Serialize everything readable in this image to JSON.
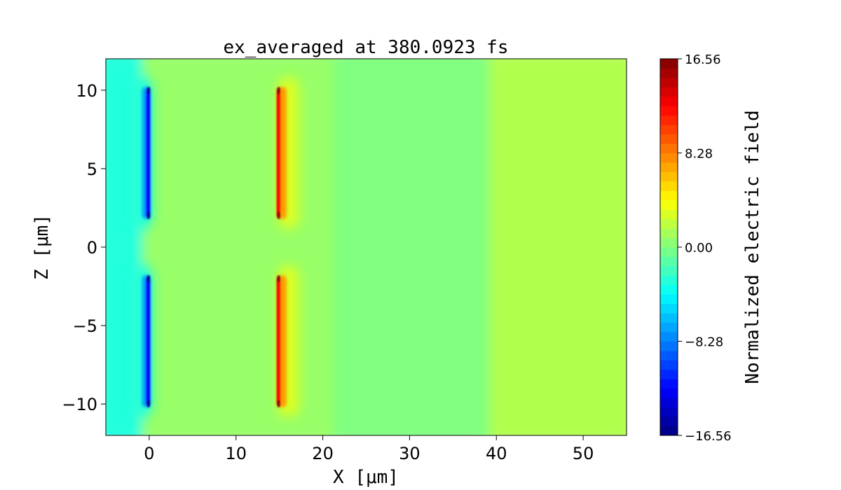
{
  "chart_data": {
    "type": "heatmap",
    "title": "ex_averaged at 380.0923 fs",
    "xlabel": "X [μm]",
    "ylabel": "Z [μm]",
    "xlim": [
      -5,
      55
    ],
    "ylim": [
      -12,
      12
    ],
    "xticks": [
      0,
      10,
      20,
      30,
      40,
      50
    ],
    "xtick_labels": [
      "0",
      "10",
      "20",
      "30",
      "40",
      "50"
    ],
    "yticks": [
      10,
      5,
      0,
      -5,
      -10
    ],
    "ytick_labels": [
      "10",
      "5",
      "0",
      "−5",
      "−10"
    ],
    "colormap": "jet",
    "colorbar": {
      "label": "Normalized electric field",
      "vmin": -16.56,
      "vmax": 16.56,
      "levels": 40,
      "ticks": [
        16.56,
        8.28,
        0.0,
        -8.28,
        -16.56
      ],
      "tick_labels": [
        "16.56",
        "8.28",
        "0.00",
        "−8.28",
        "−16.56"
      ]
    },
    "regions": [
      {
        "x": [
          -5,
          0
        ],
        "z": [
          -12,
          12
        ],
        "value": -3.0
      },
      {
        "x": [
          0,
          22
        ],
        "z": [
          -12,
          12
        ],
        "value": 0.8
      },
      {
        "x": [
          22,
          40
        ],
        "z": [
          -12,
          12
        ],
        "value": 0.0
      },
      {
        "x": [
          40,
          55
        ],
        "z": [
          -12,
          12
        ],
        "value": 1.6
      }
    ],
    "features": [
      {
        "x": 0,
        "z": [
          1.8,
          10.2
        ],
        "value": -16.56
      },
      {
        "x": 0,
        "z": [
          -10.2,
          -1.8
        ],
        "value": -16.56
      },
      {
        "x": 15,
        "z": [
          1.8,
          10.2
        ],
        "value": 16.56
      },
      {
        "x": 15,
        "z": [
          -10.2,
          -1.8
        ],
        "value": 16.56
      }
    ]
  }
}
